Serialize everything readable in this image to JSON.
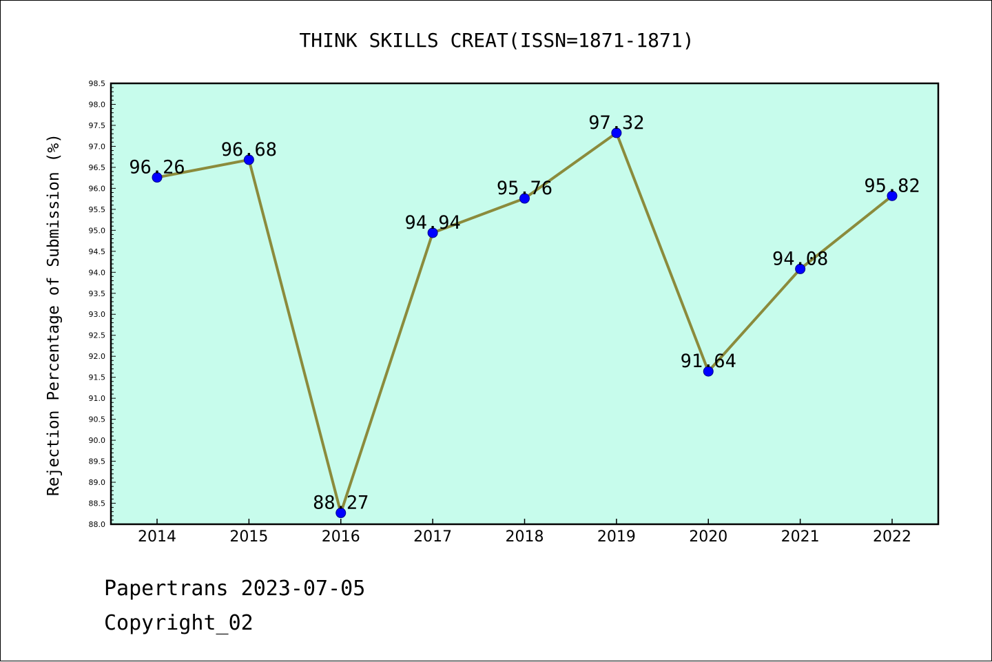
{
  "chart_data": {
    "type": "line",
    "title": "THINK SKILLS CREAT(ISSN=1871-1871)",
    "xlabel": "",
    "ylabel": "Rejection Percentage of Submission (%)",
    "categories": [
      "2014",
      "2015",
      "2016",
      "2017",
      "2018",
      "2019",
      "2020",
      "2021",
      "2022"
    ],
    "series": [
      {
        "values": [
          96.26,
          96.68,
          88.27,
          94.94,
          95.76,
          97.32,
          91.64,
          94.08,
          95.82
        ],
        "labels": [
          "96.26",
          "96.68",
          "88.27",
          "94.94",
          "95.76",
          "97.32",
          "91.64",
          "94.08",
          "95.82"
        ]
      }
    ],
    "ylim": [
      88.0,
      98.5
    ],
    "yticks": [
      "88.0",
      "88.5",
      "89.0",
      "89.5",
      "90.0",
      "90.5",
      "91.0",
      "91.5",
      "92.0",
      "92.5",
      "93.0",
      "93.5",
      "94.0",
      "94.5",
      "95.0",
      "95.5",
      "96.0",
      "96.5",
      "97.0",
      "97.5",
      "98.0",
      "98.5"
    ],
    "grid": false,
    "colors": {
      "plot_background": "#c7fcec",
      "line": "#8b8b3c",
      "marker": "#0000ff",
      "marker_edge": "#00008b"
    }
  },
  "footer": {
    "date_line": "Papertrans 2023-07-05",
    "copyright_line": "Copyright_02"
  }
}
